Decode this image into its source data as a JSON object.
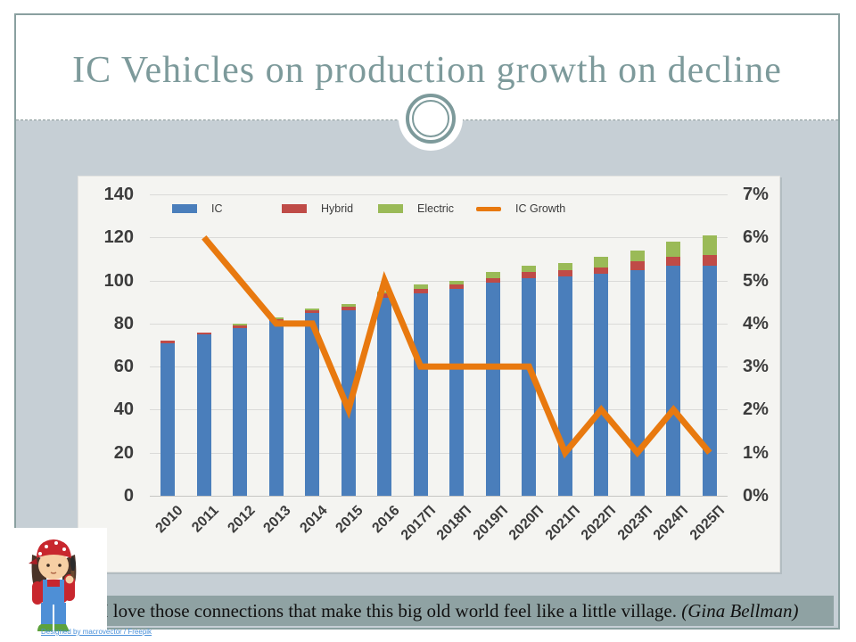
{
  "slide": {
    "title": "IC Vehicles on production growth on decline",
    "quote": {
      "text": "I love those connections that make this big old world feel like a little village. ",
      "author": "(Gina Bellman)"
    },
    "attribution": "Designed by macrovector / Freepik"
  },
  "colors": {
    "title": "#7d9a9b",
    "frame_border": "#8aa0a0",
    "body_background": "#c6cfd5",
    "quote_strip": "#8fa2a3",
    "chart_background": "#f4f4f1",
    "ic_bar": "#4a7ebb",
    "hybrid_bar": "#bf4b47",
    "electric_bar": "#9aba57",
    "growth_line": "#e8790f",
    "axis_text": "#3c3c3c"
  },
  "chart_data": {
    "type": "bar",
    "subtype": "stacked-bars-with-line",
    "categories": [
      "2010",
      "2011",
      "2012",
      "2013",
      "2014",
      "2015",
      "2016",
      "2017П",
      "2018П",
      "2019П",
      "2020П",
      "2021П",
      "2022П",
      "2023П",
      "2024П",
      "2025П"
    ],
    "series": [
      {
        "name": "IC",
        "type": "bar",
        "axis": "left",
        "color": "#4a7ebb",
        "values": [
          71,
          75,
          78,
          81,
          85,
          86,
          92,
          94,
          96,
          99,
          101,
          102,
          103,
          105,
          107,
          107
        ]
      },
      {
        "name": "Hybrid",
        "type": "bar",
        "axis": "left",
        "color": "#bf4b47",
        "values": [
          1,
          1,
          1,
          1,
          1,
          2,
          2,
          2,
          2,
          2,
          3,
          3,
          3,
          4,
          4,
          5
        ]
      },
      {
        "name": "Electric",
        "type": "bar",
        "axis": "left",
        "color": "#9aba57",
        "values": [
          0,
          0,
          1,
          1,
          1,
          1,
          1,
          2,
          2,
          3,
          3,
          3,
          5,
          5,
          7,
          9
        ]
      },
      {
        "name": "IC Growth",
        "type": "line",
        "axis": "right",
        "color": "#e8790f",
        "values": [
          null,
          6,
          5,
          4,
          4,
          2,
          5,
          3,
          3,
          3,
          3,
          1,
          2,
          1,
          2,
          1
        ]
      }
    ],
    "left_axis": {
      "min": 0,
      "max": 140,
      "step": 20,
      "ticks": [
        "0",
        "20",
        "40",
        "60",
        "80",
        "100",
        "120",
        "140"
      ]
    },
    "right_axis": {
      "min": 0,
      "max": 7,
      "step": 1,
      "ticks": [
        "0%",
        "1%",
        "2%",
        "3%",
        "4%",
        "5%",
        "6%",
        "7%"
      ]
    },
    "legend": [
      "IC",
      "Hybrid",
      "Electric",
      "IC Growth"
    ],
    "legend_position": "top-inside",
    "grid": true,
    "title": "",
    "xlabel": "",
    "ylabel": ""
  }
}
